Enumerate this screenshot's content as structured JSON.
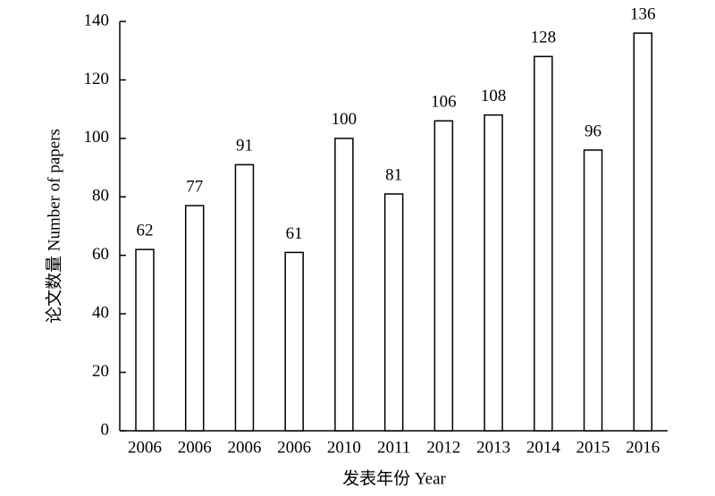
{
  "chart_data": {
    "type": "bar",
    "x_label": "发表年份 Year",
    "y_label": "论文数量 Number of papers",
    "categories": [
      "2006",
      "2006",
      "2006",
      "2006",
      "2010",
      "2011",
      "2012",
      "2013",
      "2014",
      "2015",
      "2016"
    ],
    "values": [
      62,
      77,
      91,
      61,
      100,
      81,
      106,
      108,
      128,
      96,
      136
    ],
    "color": "#ffffff",
    "ylim": [
      0,
      140
    ],
    "yticks": [
      0,
      20,
      40,
      60,
      80,
      100,
      120,
      140
    ],
    "grid": false
  }
}
